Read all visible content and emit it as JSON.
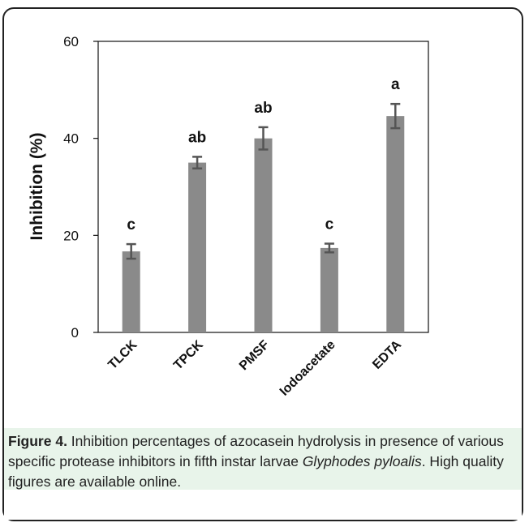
{
  "chart_data": {
    "type": "bar",
    "categories": [
      "TLCK",
      "TPCK",
      "PMSF",
      "Iodoacetate",
      "EDTA"
    ],
    "values": [
      16.7,
      35.0,
      40.0,
      17.4,
      44.6
    ],
    "errors": [
      1.5,
      1.2,
      2.3,
      0.9,
      2.5
    ],
    "letters": [
      "c",
      "ab",
      "ab",
      "c",
      "a"
    ],
    "ylabel": "Inhibition (%)",
    "xlabel": "",
    "ylim": [
      0,
      60
    ],
    "yticks": [
      "0",
      "20",
      "40",
      "60"
    ],
    "grid": false,
    "bar_color": "#8a8a8a",
    "error_color": "#555555"
  },
  "caption": {
    "label": "Figure 4.",
    "text_before_italic": " Inhibition percentages of azocasein hydrolysis in presence of various specific protease inhibitors in fifth instar larvae ",
    "italic": "Glyphodes pyloalis",
    "text_after_italic": ". High quality figures are available online."
  },
  "colors": {
    "caption_background": "#e8f4ea",
    "frame": "#222222"
  }
}
